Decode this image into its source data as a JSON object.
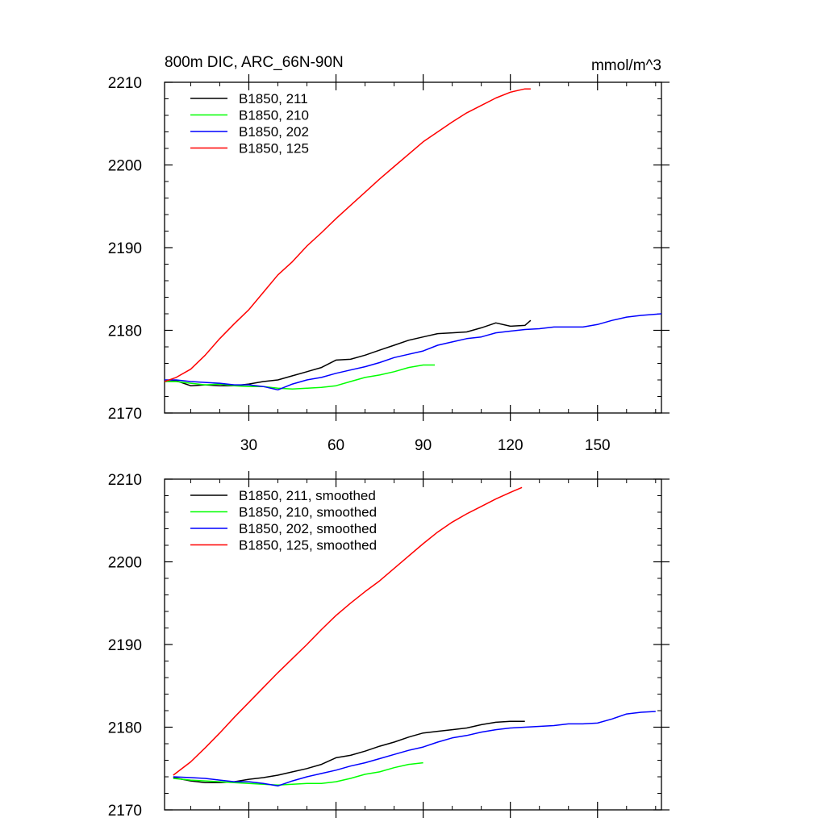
{
  "chart_data": [
    {
      "type": "line",
      "title": "800m DIC, ARC_66N-90N",
      "units": "mmol/m^3",
      "xlim": [
        1,
        172
      ],
      "ylim": [
        2170,
        2210
      ],
      "xticks": [
        30,
        60,
        90,
        120,
        150
      ],
      "yticks": [
        2170,
        2180,
        2190,
        2200,
        2210
      ],
      "legend_position": "top-left",
      "grid": false,
      "series": [
        {
          "name": "B1850, 211",
          "color": "#000000",
          "x": [
            1,
            5,
            10,
            15,
            20,
            25,
            30,
            35,
            40,
            45,
            50,
            55,
            60,
            65,
            70,
            75,
            80,
            85,
            90,
            95,
            100,
            105,
            110,
            115,
            120,
            125,
            127
          ],
          "y": [
            2173.8,
            2173.9,
            2173.3,
            2173.4,
            2173.3,
            2173.3,
            2173.5,
            2173.8,
            2174.0,
            2174.5,
            2175.0,
            2175.5,
            2176.4,
            2176.5,
            2177.0,
            2177.6,
            2178.2,
            2178.8,
            2179.2,
            2179.6,
            2179.7,
            2179.8,
            2180.3,
            2180.9,
            2180.5,
            2180.6,
            2181.2
          ]
        },
        {
          "name": "B1850, 210",
          "color": "#00ff00",
          "x": [
            1,
            5,
            10,
            15,
            20,
            25,
            30,
            35,
            40,
            45,
            50,
            55,
            60,
            65,
            70,
            75,
            80,
            85,
            90,
            94
          ],
          "y": [
            2173.8,
            2173.8,
            2173.6,
            2173.4,
            2173.5,
            2173.3,
            2173.2,
            2173.2,
            2173.0,
            2172.9,
            2173.0,
            2173.1,
            2173.3,
            2173.8,
            2174.3,
            2174.6,
            2175.0,
            2175.5,
            2175.8,
            2175.8
          ]
        },
        {
          "name": "B1850, 202",
          "color": "#0000ff",
          "x": [
            1,
            5,
            10,
            15,
            20,
            25,
            30,
            35,
            40,
            45,
            50,
            55,
            60,
            65,
            70,
            75,
            80,
            85,
            90,
            95,
            100,
            105,
            110,
            115,
            120,
            125,
            130,
            135,
            140,
            145,
            150,
            155,
            160,
            165,
            172
          ],
          "y": [
            2174.0,
            2174.0,
            2173.8,
            2173.7,
            2173.6,
            2173.4,
            2173.4,
            2173.2,
            2172.8,
            2173.5,
            2174.0,
            2174.3,
            2174.8,
            2175.2,
            2175.6,
            2176.1,
            2176.7,
            2177.1,
            2177.5,
            2178.2,
            2178.6,
            2179.0,
            2179.2,
            2179.7,
            2179.9,
            2180.1,
            2180.2,
            2180.4,
            2180.4,
            2180.4,
            2180.7,
            2181.2,
            2181.6,
            2181.8,
            2182.0
          ]
        },
        {
          "name": "B1850, 125",
          "color": "#ff0000",
          "x": [
            1,
            5,
            10,
            15,
            20,
            25,
            30,
            35,
            40,
            45,
            50,
            55,
            60,
            65,
            70,
            75,
            80,
            85,
            90,
            95,
            100,
            105,
            110,
            115,
            120,
            125,
            127
          ],
          "y": [
            2173.8,
            2174.3,
            2175.3,
            2177.0,
            2179.0,
            2180.8,
            2182.5,
            2184.6,
            2186.7,
            2188.3,
            2190.2,
            2191.8,
            2193.5,
            2195.1,
            2196.7,
            2198.3,
            2199.8,
            2201.3,
            2202.8,
            2204.0,
            2205.2,
            2206.3,
            2207.2,
            2208.1,
            2208.8,
            2209.2,
            2209.2
          ]
        }
      ]
    },
    {
      "type": "line",
      "xlim": [
        1,
        172
      ],
      "ylim": [
        2170,
        2210
      ],
      "xticks": [
        30,
        60,
        90,
        120,
        150
      ],
      "yticks": [
        2170,
        2180,
        2190,
        2200,
        2210
      ],
      "legend_position": "top-left",
      "grid": false,
      "series": [
        {
          "name": "B1850, 211, smoothed",
          "color": "#000000",
          "x": [
            4,
            10,
            15,
            20,
            25,
            30,
            35,
            40,
            45,
            50,
            55,
            60,
            65,
            70,
            75,
            80,
            85,
            90,
            95,
            100,
            105,
            110,
            115,
            120,
            125
          ],
          "y": [
            2173.9,
            2173.5,
            2173.3,
            2173.3,
            2173.4,
            2173.7,
            2173.9,
            2174.2,
            2174.6,
            2175.0,
            2175.5,
            2176.3,
            2176.6,
            2177.1,
            2177.7,
            2178.2,
            2178.8,
            2179.3,
            2179.5,
            2179.7,
            2179.9,
            2180.3,
            2180.6,
            2180.7,
            2180.7
          ]
        },
        {
          "name": "B1850, 210, smoothed",
          "color": "#00ff00",
          "x": [
            4,
            10,
            15,
            20,
            25,
            30,
            35,
            40,
            45,
            50,
            55,
            60,
            65,
            70,
            75,
            80,
            85,
            90
          ],
          "y": [
            2173.8,
            2173.6,
            2173.5,
            2173.4,
            2173.3,
            2173.2,
            2173.1,
            2173.0,
            2173.1,
            2173.2,
            2173.2,
            2173.4,
            2173.8,
            2174.3,
            2174.6,
            2175.1,
            2175.5,
            2175.7
          ]
        },
        {
          "name": "B1850, 202, smoothed",
          "color": "#0000ff",
          "x": [
            4,
            10,
            15,
            20,
            25,
            30,
            35,
            40,
            45,
            50,
            55,
            60,
            65,
            70,
            75,
            80,
            85,
            90,
            95,
            100,
            105,
            110,
            115,
            120,
            125,
            130,
            135,
            140,
            145,
            150,
            155,
            160,
            165,
            170
          ],
          "y": [
            2174.0,
            2173.9,
            2173.8,
            2173.6,
            2173.4,
            2173.4,
            2173.2,
            2172.9,
            2173.5,
            2174.0,
            2174.4,
            2174.8,
            2175.3,
            2175.7,
            2176.2,
            2176.7,
            2177.2,
            2177.6,
            2178.2,
            2178.7,
            2179.0,
            2179.4,
            2179.7,
            2179.9,
            2180.0,
            2180.1,
            2180.2,
            2180.4,
            2180.4,
            2180.5,
            2181.0,
            2181.6,
            2181.8,
            2181.9
          ]
        },
        {
          "name": "B1850, 125, smoothed",
          "color": "#ff0000",
          "x": [
            4,
            10,
            15,
            20,
            25,
            30,
            35,
            40,
            45,
            50,
            55,
            60,
            65,
            70,
            75,
            80,
            85,
            90,
            95,
            100,
            105,
            110,
            115,
            120,
            124
          ],
          "y": [
            2174.2,
            2175.8,
            2177.5,
            2179.3,
            2181.2,
            2183.0,
            2184.8,
            2186.6,
            2188.3,
            2190.0,
            2191.8,
            2193.5,
            2195.0,
            2196.4,
            2197.7,
            2199.2,
            2200.7,
            2202.2,
            2203.6,
            2204.8,
            2205.8,
            2206.7,
            2207.6,
            2208.4,
            2209.0
          ]
        }
      ]
    }
  ]
}
